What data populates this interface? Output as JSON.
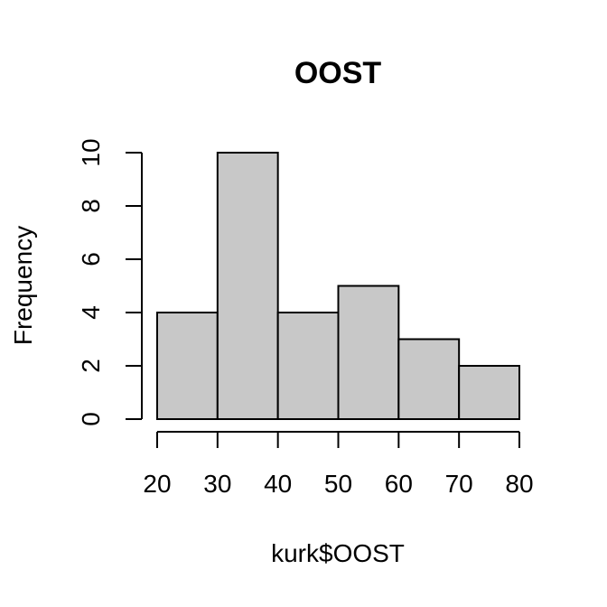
{
  "chart_data": {
    "type": "bar",
    "title": "OOST",
    "xlabel": "kurk$OOST",
    "ylabel": "Frequency",
    "bins": [
      {
        "from": 20,
        "to": 30,
        "count": 4
      },
      {
        "from": 30,
        "to": 40,
        "count": 10
      },
      {
        "from": 40,
        "to": 50,
        "count": 4
      },
      {
        "from": 50,
        "to": 60,
        "count": 5
      },
      {
        "from": 60,
        "to": 70,
        "count": 3
      },
      {
        "from": 70,
        "to": 80,
        "count": 2
      }
    ],
    "xlim": [
      20,
      80
    ],
    "ylim": [
      0,
      10
    ],
    "x_ticks": [
      "20",
      "30",
      "40",
      "50",
      "60",
      "70",
      "80"
    ],
    "y_ticks": [
      "0",
      "2",
      "4",
      "6",
      "8",
      "10"
    ],
    "colors": {
      "bar_fill": "#c8c8c8",
      "bar_stroke": "#000000"
    },
    "grid": false,
    "legend": "none"
  }
}
